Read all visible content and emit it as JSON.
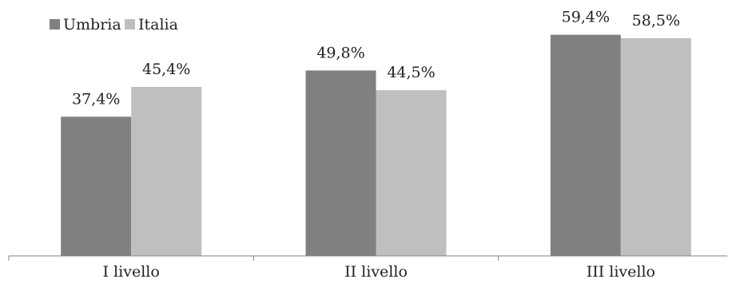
{
  "chart_data": {
    "type": "bar",
    "categories": [
      "I livello",
      "II livello",
      "III livello"
    ],
    "series": [
      {
        "name": "Umbria",
        "color": "#808080",
        "values": [
          37.4,
          49.8,
          59.4
        ],
        "labels": [
          "37,4%",
          "49,8%",
          "59,4%"
        ]
      },
      {
        "name": "Italia",
        "color": "#bfbfbf",
        "values": [
          45.4,
          44.5,
          58.5
        ],
        "labels": [
          "45,4%",
          "44,5%",
          "58,5%"
        ]
      }
    ],
    "legend_position": "top-left",
    "grid": false,
    "ylim": [
      0,
      60
    ]
  }
}
